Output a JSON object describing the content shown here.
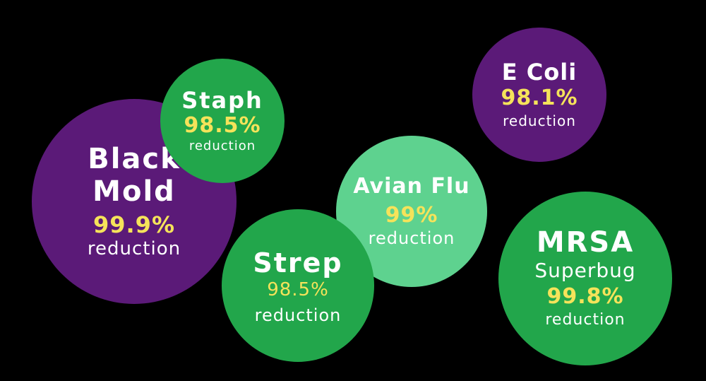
{
  "bubbles": {
    "black_mold": {
      "line1": "Black",
      "line2": "Mold",
      "percent": "99.9%",
      "label": "reduction",
      "color": "#5b1a78"
    },
    "staph": {
      "name": "Staph",
      "percent": "98.5%",
      "label": "reduction",
      "color": "#22a64b"
    },
    "strep": {
      "name": "Strep",
      "percent": "98.5%",
      "label": "reduction",
      "color": "#22a64b"
    },
    "avian_flu": {
      "name": "Avian Flu",
      "percent": "99%",
      "label": "reduction",
      "color": "#5ed28f"
    },
    "e_coli": {
      "name": "E Coli",
      "percent": "98.1%",
      "label": "reduction",
      "color": "#5b1a78"
    },
    "mrsa": {
      "name": "MRSA",
      "subtitle": "Superbug",
      "percent": "99.8%",
      "label": "reduction",
      "color": "#22a64b"
    }
  },
  "colors": {
    "background": "#000000",
    "percent_text": "#f5e35a",
    "label_text": "#ffffff"
  }
}
